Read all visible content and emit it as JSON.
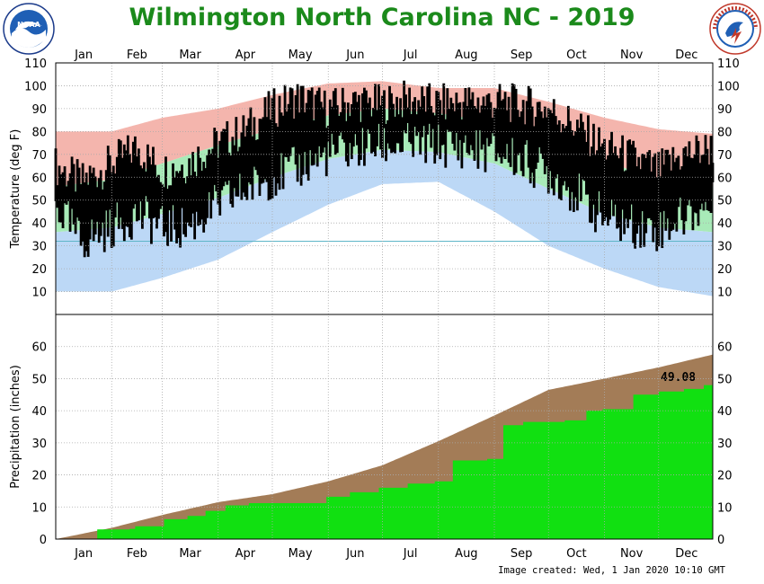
{
  "header": {
    "title": "Wilmington North Carolina NC - 2019",
    "left_logo_text": "NOAA",
    "right_logo_text": "NATIONAL WEATHER SERVICE"
  },
  "footer": {
    "credit": "Image created: Wed, 1 Jan 2020 10:10 GMT"
  },
  "colors": {
    "title": "#1b8a1b",
    "record_band": "#f4b5ad",
    "normal_band": "#a8eab8",
    "low_record_band": "#bcd8f6",
    "daily_range": "#000000",
    "freezing_line": "#5fb6c8",
    "normal_precip": "#a37c57",
    "observed_precip": "#11e011"
  },
  "chart_data": [
    {
      "type": "area",
      "panel": "temperature",
      "ylabel": "Temperature (deg F)",
      "ylim": [
        0,
        110
      ],
      "yticks": [
        10,
        20,
        30,
        40,
        50,
        60,
        70,
        80,
        90,
        100,
        110
      ],
      "months": [
        "Jan",
        "Feb",
        "Mar",
        "Apr",
        "May",
        "Jun",
        "Jul",
        "Aug",
        "Sep",
        "Oct",
        "Nov",
        "Dec"
      ],
      "grid": true,
      "freezing_line_value": 32,
      "series": [
        {
          "name": "Record High",
          "x": [
            1,
            32,
            60,
            91,
            121,
            152,
            182,
            213,
            244,
            274,
            305,
            335,
            365
          ],
          "values": [
            80,
            80,
            86,
            90,
            96,
            101,
            102,
            99,
            99,
            93,
            86,
            81,
            79
          ]
        },
        {
          "name": "Normal High",
          "x": [
            1,
            32,
            60,
            91,
            121,
            152,
            182,
            213,
            244,
            274,
            305,
            335,
            365
          ],
          "values": [
            56,
            59,
            66,
            74,
            81,
            87,
            90,
            88,
            84,
            76,
            67,
            59,
            56
          ]
        },
        {
          "name": "Normal Low",
          "x": [
            1,
            32,
            60,
            91,
            121,
            152,
            182,
            213,
            244,
            274,
            305,
            335,
            365
          ],
          "values": [
            36,
            38,
            44,
            51,
            60,
            68,
            72,
            71,
            66,
            55,
            44,
            38,
            36
          ]
        },
        {
          "name": "Record Low",
          "x": [
            1,
            32,
            60,
            91,
            121,
            152,
            182,
            213,
            244,
            274,
            305,
            335,
            365
          ],
          "values": [
            10,
            10,
            16,
            24,
            36,
            48,
            57,
            58,
            45,
            30,
            20,
            12,
            8
          ]
        },
        {
          "name": "Observed High",
          "x": [
            1,
            15,
            32,
            46,
            60,
            74,
            91,
            105,
            121,
            135,
            152,
            166,
            182,
            196,
            213,
            227,
            244,
            258,
            274,
            288,
            305,
            319,
            335,
            349,
            365
          ],
          "values": [
            65,
            58,
            66,
            73,
            63,
            66,
            75,
            80,
            90,
            95,
            90,
            93,
            92,
            94,
            92,
            93,
            93,
            92,
            90,
            83,
            73,
            69,
            63,
            70,
            73
          ]
        },
        {
          "name": "Observed Low",
          "x": [
            1,
            15,
            32,
            46,
            60,
            74,
            91,
            105,
            121,
            135,
            152,
            166,
            182,
            196,
            213,
            227,
            244,
            258,
            274,
            288,
            305,
            319,
            335,
            349,
            365
          ],
          "values": [
            48,
            32,
            38,
            44,
            38,
            38,
            48,
            54,
            60,
            64,
            70,
            72,
            74,
            74,
            74,
            73,
            71,
            68,
            62,
            54,
            42,
            39,
            37,
            43,
            48
          ]
        }
      ]
    },
    {
      "type": "area",
      "panel": "precipitation",
      "ylabel": "Precipitation (inches)",
      "ylim": [
        0,
        70
      ],
      "yticks": [
        0,
        10,
        20,
        30,
        40,
        50,
        60
      ],
      "months": [
        "Jan",
        "Feb",
        "Mar",
        "Apr",
        "May",
        "Jun",
        "Jul",
        "Aug",
        "Sep",
        "Oct",
        "Nov",
        "Dec"
      ],
      "grid": true,
      "annotation": "49.08",
      "series": [
        {
          "name": "Normal",
          "x": [
            1,
            32,
            60,
            91,
            121,
            152,
            182,
            213,
            244,
            274,
            305,
            335,
            365
          ],
          "values": [
            0,
            3.5,
            7.5,
            11.5,
            14.0,
            18.0,
            23.0,
            30.5,
            38.5,
            46.5,
            50.0,
            53.5,
            57.5
          ]
        },
        {
          "name": "Observed",
          "x": [
            1,
            24,
            42,
            45,
            61,
            74,
            84,
            95,
            108,
            151,
            164,
            180,
            196,
            211,
            221,
            240,
            249,
            260,
            283,
            295,
            304,
            321,
            335,
            349,
            360,
            365
          ],
          "values": [
            0,
            3.0,
            3.2,
            4.0,
            6.2,
            7.2,
            8.8,
            10.5,
            11.2,
            13.2,
            14.6,
            16.0,
            17.3,
            18.0,
            24.5,
            25.0,
            35.5,
            36.5,
            37.0,
            40.0,
            40.5,
            45.0,
            46.0,
            46.8,
            48.0,
            49.08
          ]
        }
      ]
    }
  ]
}
